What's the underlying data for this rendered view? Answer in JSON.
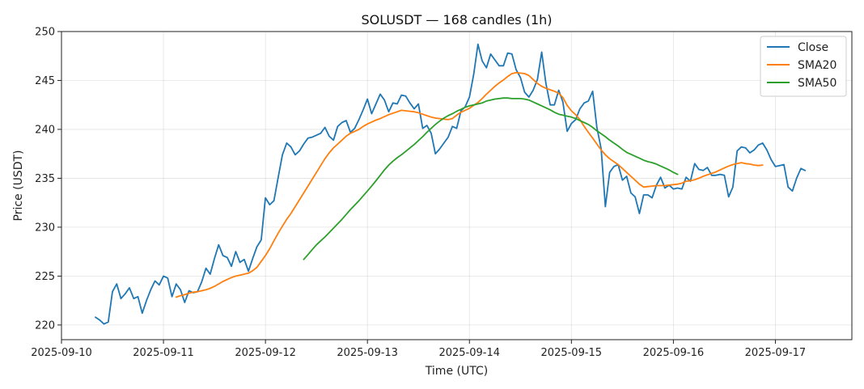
{
  "chart_data": {
    "type": "line",
    "title": "SOLUSDT — 168 candles (1h)",
    "xlabel": "Time (UTC)",
    "ylabel": "Price (USDT)",
    "x_start": "2025-09-10T08:00:00Z",
    "x_step_hours": 1,
    "xlim": [
      "2025-09-10T00:00:00Z",
      "2025-09-17T18:00:00Z"
    ],
    "ylim": [
      218.5,
      250.0
    ],
    "x_ticks": [
      "2025-09-10",
      "2025-09-11",
      "2025-09-12",
      "2025-09-13",
      "2025-09-14",
      "2025-09-15",
      "2025-09-16",
      "2025-09-17"
    ],
    "y_ticks": [
      220,
      225,
      230,
      235,
      240,
      245,
      250
    ],
    "grid": true,
    "legend_position": "top-right",
    "series": [
      {
        "name": "Close",
        "color": "#1f77b4",
        "values": [
          220.8,
          220.5,
          220.1,
          220.3,
          223.4,
          224.2,
          222.7,
          223.2,
          223.8,
          222.7,
          222.9,
          221.2,
          222.5,
          223.6,
          224.5,
          224.1,
          225.0,
          224.8,
          222.9,
          224.2,
          223.6,
          222.3,
          223.5,
          223.3,
          223.4,
          224.4,
          225.8,
          225.2,
          226.8,
          228.2,
          227.1,
          226.9,
          226.0,
          227.5,
          226.4,
          226.7,
          225.5,
          226.8,
          228.0,
          228.7,
          233.0,
          232.3,
          232.7,
          235.1,
          237.4,
          238.6,
          238.2,
          237.4,
          237.8,
          238.5,
          239.1,
          239.2,
          239.4,
          239.6,
          240.2,
          239.3,
          238.9,
          240.3,
          240.7,
          240.9,
          239.7,
          240.1,
          241.0,
          242.0,
          243.1,
          241.6,
          242.6,
          243.6,
          243.0,
          241.8,
          242.7,
          242.6,
          243.5,
          243.4,
          242.7,
          242.1,
          242.6,
          240.1,
          240.4,
          239.6,
          237.5,
          238.0,
          238.6,
          239.2,
          240.3,
          240.1,
          241.9,
          242.3,
          243.3,
          245.6,
          248.7,
          247.0,
          246.3,
          247.7,
          247.1,
          246.5,
          246.5,
          247.8,
          247.7,
          246.1,
          245.3,
          243.8,
          243.3,
          244.0,
          245.1,
          247.9,
          244.7,
          242.5,
          242.5,
          244.0,
          242.8,
          239.8,
          240.6,
          241.0,
          242.1,
          242.7,
          242.9,
          243.9,
          240.2,
          238.0,
          232.1,
          235.6,
          236.2,
          236.4,
          234.8,
          235.2,
          233.5,
          233.1,
          231.4,
          233.3,
          233.3,
          233.0,
          234.3,
          235.1,
          234.0,
          234.3,
          233.9,
          234.0,
          233.9,
          235.1,
          234.7,
          236.5,
          235.9,
          235.8,
          236.1,
          235.3,
          235.3,
          235.4,
          235.3,
          233.1,
          234.1,
          237.8,
          238.2,
          238.1,
          237.6,
          237.9,
          238.4,
          238.6,
          237.9,
          236.9,
          236.2,
          236.3,
          236.4,
          234.1,
          233.7,
          235.0,
          236.0,
          235.8
        ]
      },
      {
        "name": "SMA20",
        "color": "#ff7f0e",
        "values": [
          null,
          null,
          null,
          null,
          null,
          null,
          null,
          null,
          null,
          null,
          null,
          null,
          null,
          null,
          null,
          null,
          null,
          null,
          null,
          222.85,
          223.0,
          223.1,
          223.25,
          223.35,
          223.4,
          223.5,
          223.6,
          223.75,
          223.95,
          224.2,
          224.45,
          224.65,
          224.85,
          225.0,
          225.1,
          225.2,
          225.3,
          225.55,
          225.9,
          226.5,
          227.1,
          227.8,
          228.6,
          229.4,
          230.1,
          230.8,
          231.4,
          232.1,
          232.8,
          233.5,
          234.2,
          234.9,
          235.6,
          236.3,
          237.0,
          237.6,
          238.1,
          238.5,
          238.9,
          239.3,
          239.6,
          239.8,
          240.0,
          240.3,
          240.55,
          240.75,
          240.95,
          241.1,
          241.3,
          241.5,
          241.65,
          241.8,
          241.95,
          241.9,
          241.85,
          241.8,
          241.7,
          241.55,
          241.4,
          241.25,
          241.15,
          241.1,
          241.05,
          241.0,
          241.1,
          241.45,
          241.75,
          241.95,
          242.15,
          242.45,
          242.75,
          243.15,
          243.6,
          244.0,
          244.4,
          244.75,
          245.05,
          245.4,
          245.7,
          245.8,
          245.75,
          245.7,
          245.5,
          245.1,
          244.7,
          244.4,
          244.2,
          244.05,
          243.9,
          243.7,
          243.25,
          242.45,
          241.9,
          241.5,
          241.0,
          240.3,
          239.7,
          239.1,
          238.5,
          237.9,
          237.4,
          237.0,
          236.7,
          236.4,
          236.0,
          235.6,
          235.2,
          234.8,
          234.4,
          234.1,
          234.15,
          234.2,
          234.25,
          234.25,
          234.25,
          234.3,
          234.35,
          234.4,
          234.5,
          234.7,
          234.75,
          234.85,
          235.0,
          235.2,
          235.35,
          235.5,
          235.65,
          235.85,
          236.05,
          236.25,
          236.4,
          236.5,
          236.6,
          236.5,
          236.45,
          236.35,
          236.3,
          236.35,
          null,
          null,
          null,
          null,
          null,
          null
        ]
      },
      {
        "name": "SMA50",
        "color": "#2ca02c",
        "values": [
          null,
          null,
          null,
          null,
          null,
          null,
          null,
          null,
          null,
          null,
          null,
          null,
          null,
          null,
          null,
          null,
          null,
          null,
          null,
          null,
          null,
          null,
          null,
          null,
          null,
          null,
          null,
          null,
          null,
          null,
          null,
          null,
          null,
          null,
          null,
          null,
          null,
          null,
          null,
          null,
          null,
          null,
          null,
          null,
          null,
          null,
          null,
          null,
          null,
          226.7,
          227.2,
          227.7,
          228.2,
          228.6,
          229.0,
          229.45,
          229.9,
          230.35,
          230.8,
          231.3,
          231.8,
          232.25,
          232.7,
          233.2,
          233.7,
          234.2,
          234.75,
          235.3,
          235.85,
          236.35,
          236.75,
          237.1,
          237.4,
          237.75,
          238.1,
          238.45,
          238.85,
          239.25,
          239.7,
          240.1,
          240.5,
          240.85,
          241.15,
          241.4,
          241.6,
          241.85,
          242.05,
          242.25,
          242.4,
          242.5,
          242.6,
          242.7,
          242.9,
          243.0,
          243.1,
          243.15,
          243.2,
          243.2,
          243.15,
          243.15,
          243.15,
          243.1,
          243.0,
          242.8,
          242.6,
          242.4,
          242.2,
          242.0,
          241.75,
          241.55,
          241.45,
          241.35,
          241.25,
          241.1,
          240.9,
          240.7,
          240.5,
          240.2,
          239.85,
          239.55,
          239.25,
          238.9,
          238.6,
          238.3,
          237.95,
          237.65,
          237.45,
          237.25,
          237.05,
          236.85,
          236.7,
          236.6,
          236.45,
          236.25,
          236.05,
          235.85,
          235.6,
          235.4,
          null,
          null,
          null,
          null,
          null,
          null,
          null,
          null,
          null,
          null,
          null,
          null,
          null,
          null,
          null,
          null,
          null,
          null,
          null,
          null,
          null,
          null,
          null,
          null,
          null,
          null,
          null,
          null,
          null
        ]
      }
    ]
  }
}
